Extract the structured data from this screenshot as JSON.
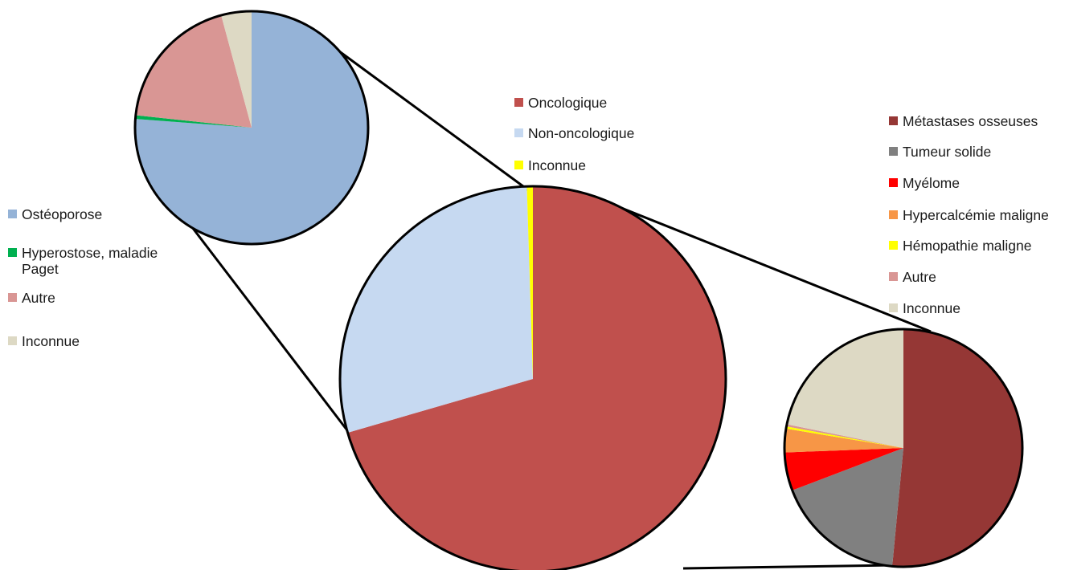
{
  "chart_data": [
    {
      "type": "pie",
      "categories": [
        "Oncologique",
        "Non-oncologique",
        "Inconnue"
      ],
      "values": [
        70.5,
        29.0,
        0.5
      ],
      "colors": [
        "#c0504d",
        "#c6d9f1",
        "#ffff00"
      ],
      "legend": "top"
    },
    {
      "type": "pie",
      "categories": [
        "Ostéoporose",
        "Hyperostose, maladie Paget",
        "Autre",
        "Inconnue"
      ],
      "values": [
        76.2,
        0.5,
        19.1,
        4.2
      ],
      "colors": [
        "#95b3d7",
        "#00b050",
        "#d99694",
        "#ddd9c4"
      ],
      "legend": "left"
    },
    {
      "type": "pie",
      "categories": [
        "Métastases osseuses",
        "Tumeur solide",
        "Myélome",
        "Hypercalcémie maligne",
        "Hémopathie maligne",
        "Autre",
        "Inconnue"
      ],
      "values": [
        51.5,
        17.7,
        5.2,
        3.2,
        0.3,
        0.3,
        21.8
      ],
      "colors": [
        "#953735",
        "#808080",
        "#ff0000",
        "#f79646",
        "#ffff00",
        "#d99694",
        "#ddd9c4"
      ],
      "legend": "right"
    }
  ]
}
